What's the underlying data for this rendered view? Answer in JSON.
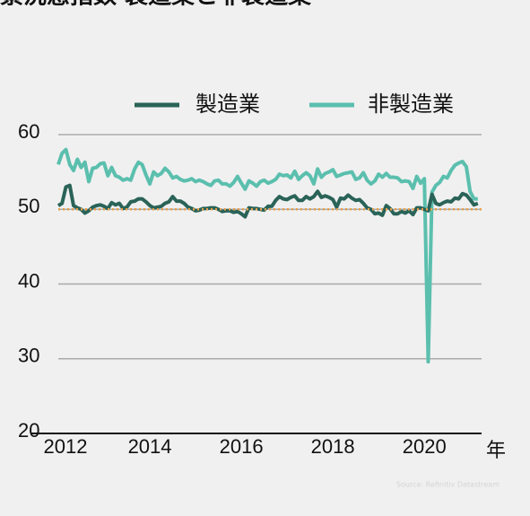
{
  "chart_data": {
    "type": "line",
    "title": "景況感指数 製造業と非製造業",
    "x_unit": "年",
    "source": "Source: Refinitiv Datastream",
    "x": [
      2012,
      2012.083,
      2012.167,
      2012.25,
      2012.333,
      2012.417,
      2012.5,
      2012.583,
      2012.667,
      2012.75,
      2012.833,
      2012.917,
      2013,
      2013.083,
      2013.167,
      2013.25,
      2013.333,
      2013.417,
      2013.5,
      2013.583,
      2013.667,
      2013.75,
      2013.833,
      2013.917,
      2014,
      2014.083,
      2014.167,
      2014.25,
      2014.333,
      2014.417,
      2014.5,
      2014.583,
      2014.667,
      2014.75,
      2014.833,
      2014.917,
      2015,
      2015.083,
      2015.167,
      2015.25,
      2015.333,
      2015.417,
      2015.5,
      2015.583,
      2015.667,
      2015.75,
      2015.833,
      2015.917,
      2016,
      2016.083,
      2016.167,
      2016.25,
      2016.333,
      2016.417,
      2016.5,
      2016.583,
      2016.667,
      2016.75,
      2016.833,
      2016.917,
      2017,
      2017.083,
      2017.167,
      2017.25,
      2017.333,
      2017.417,
      2017.5,
      2017.583,
      2017.667,
      2017.75,
      2017.833,
      2017.917,
      2018,
      2018.083,
      2018.167,
      2018.25,
      2018.333,
      2018.417,
      2018.5,
      2018.583,
      2018.667,
      2018.75,
      2018.833,
      2018.917,
      2019,
      2019.083,
      2019.167,
      2019.25,
      2019.333,
      2019.417,
      2019.5,
      2019.583,
      2019.667,
      2019.75,
      2019.833,
      2019.917,
      2020,
      2020.083,
      2020.167,
      2020.25,
      2020.333,
      2020.417,
      2020.5,
      2020.583,
      2020.667,
      2020.75,
      2020.833,
      2020.917,
      2021,
      2021.083,
      2021.167
    ],
    "series": [
      {
        "name": "製造業",
        "color": "#2a6358",
        "values": [
          50.5,
          50.8,
          53,
          53.2,
          50.5,
          50.2,
          50,
          49.5,
          49.8,
          50.3,
          50.5,
          50.6,
          50.4,
          50.1,
          50.9,
          50.6,
          50.8,
          50.1,
          50.3,
          51,
          51.1,
          51.4,
          51.4,
          51,
          50.5,
          50.2,
          50.3,
          50.4,
          50.8,
          51,
          51.7,
          51.1,
          51.1,
          50.8,
          50.3,
          50.1,
          49.8,
          49.9,
          50.1,
          50.1,
          50.2,
          50.2,
          50,
          49.7,
          49.8,
          49.8,
          49.6,
          49.7,
          49.4,
          49,
          50.2,
          50.1,
          50.1,
          50,
          49.9,
          50.4,
          50.4,
          51.2,
          51.7,
          51.4,
          51.3,
          51.6,
          51.8,
          51.2,
          51.2,
          51.7,
          51.4,
          51.7,
          52.4,
          51.6,
          51.8,
          51.6,
          51.3,
          50.3,
          51.5,
          51.4,
          51.9,
          51.5,
          51.2,
          51.3,
          50.8,
          50.2,
          50,
          49.4,
          49.5,
          49.2,
          50.5,
          50.1,
          49.4,
          49.4,
          49.7,
          49.5,
          49.8,
          49.3,
          50.2,
          50.2,
          50,
          49.8,
          52,
          50.8,
          50.6,
          50.9,
          51.1,
          51,
          51.5,
          51.4,
          52.1,
          51.9,
          51.3,
          50.6,
          50.8
        ]
      },
      {
        "name": "非製造業",
        "color": "#5bbfae",
        "values": [
          56,
          57.5,
          58,
          56,
          55.2,
          56.7,
          55.6,
          56.3,
          53.7,
          55.5,
          55.6,
          56.1,
          56.2,
          54.5,
          55.6,
          54.5,
          54.3,
          53.9,
          54.1,
          53.9,
          55.4,
          56.3,
          56,
          54.6,
          53.4,
          55,
          54.5,
          54.8,
          55.5,
          55,
          54.2,
          54.4,
          54,
          53.8,
          53.9,
          54.1,
          53.7,
          53.9,
          53.7,
          53.4,
          53.2,
          53.8,
          53.9,
          53.4,
          53.4,
          53.1,
          53.6,
          54.4,
          53.5,
          52.7,
          53.8,
          53.5,
          53.1,
          53.7,
          53.9,
          53.5,
          53.7,
          54,
          54.7,
          54.5,
          54.6,
          54.2,
          55.1,
          54,
          54.5,
          54.9,
          54.5,
          53.4,
          55.4,
          54.3,
          54.8,
          55,
          55.3,
          54.4,
          54.6,
          54.8,
          54.9,
          55,
          54,
          54.2,
          54.9,
          53.9,
          53.4,
          53.8,
          54.7,
          54.3,
          54.8,
          54.3,
          54.3,
          54.2,
          53.7,
          53.8,
          53.7,
          52.8,
          54.4,
          53.5,
          54.1,
          29.6,
          52.3,
          53.2,
          53.6,
          54.4,
          54.2,
          55.2,
          55.9,
          56.2,
          56.4,
          55.7,
          52.4,
          51.4,
          51.4
        ]
      }
    ],
    "reference_line": {
      "value": 50,
      "color": "#e8a04a"
    },
    "xlim": [
      2012,
      2021.25
    ],
    "xticks": [
      2012,
      2014,
      2016,
      2018,
      2020
    ],
    "ylim": [
      20,
      60
    ],
    "yticks": [
      20,
      30,
      40,
      50,
      60
    ],
    "grid": true
  }
}
